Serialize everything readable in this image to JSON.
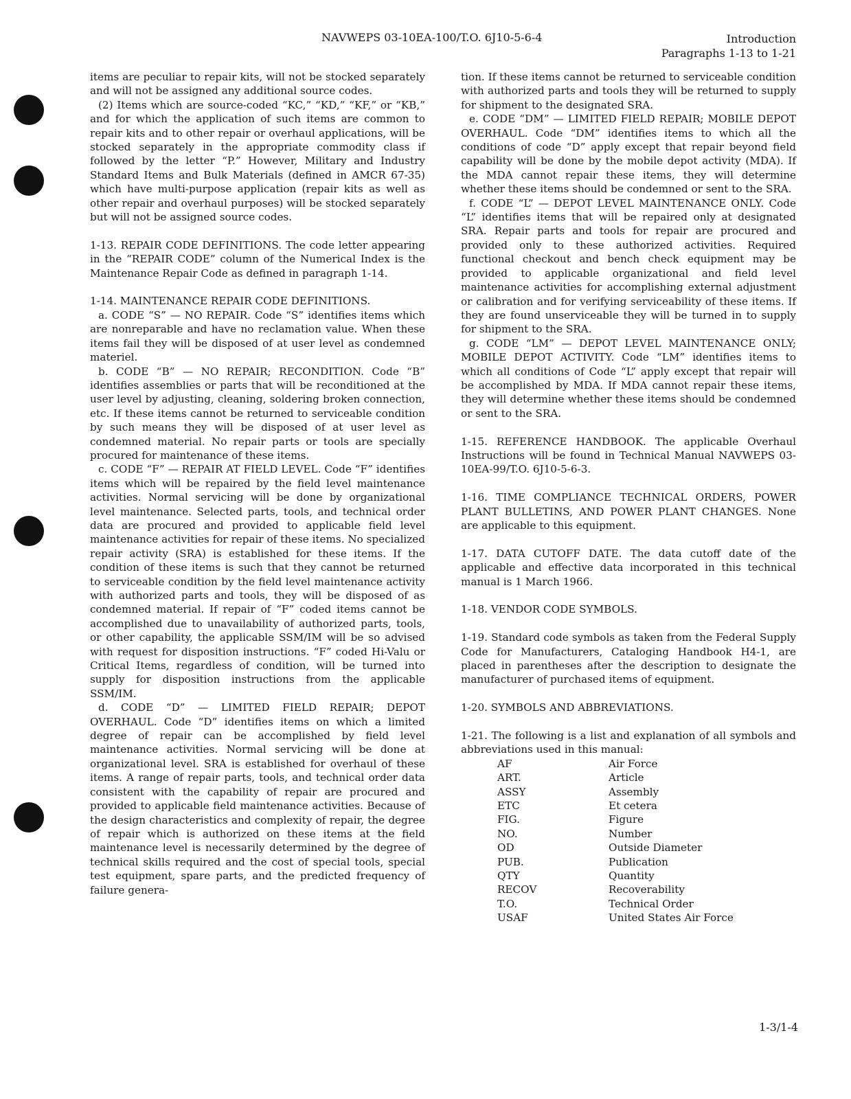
{
  "header": {
    "doc_id": "NAVWEPS 03-10EA-100/T.O. 6J10-5-6-4",
    "section": "Introduction",
    "paragraphs": "Paragraphs 1-13 to 1-21"
  },
  "left_column": [
    "items are peculiar to repair kits, will not be stocked separately and will not be assigned any additional source codes.",
    "(2) Items which are source-coded “KC,” “KD,” “KF,” or “KB,” and for which the application of such items are common to repair kits and to other repair or overhaul applications, will be stocked separately in the appropriate commodity class if followed by the letter “P.” However, Military and Industry Standard Items and Bulk Materials (defined in AMCR 67-35) which have multi-purpose application (repair kits as well as other repair and overhaul purposes) will be stocked separately but will not be assigned source codes.",
    "1-13. REPAIR CODE DEFINITIONS. The code letter appearing in the “REPAIR CODE” column of the Numerical Index is the Maintenance Repair Code as defined in paragraph 1-14.",
    "1-14. MAINTENANCE REPAIR CODE DEFINITIONS.",
    "a. CODE “S” — NO REPAIR. Code “S” identifies items which are nonreparable and have no reclamation value. When these items fail they will be disposed of at user level as condemned materiel.",
    "b. CODE “B” — NO REPAIR; RECONDITION. Code “B” identifies assemblies or parts that will be reconditioned at the user level by adjusting, cleaning, soldering broken connection, etc. If these items cannot be returned to serviceable condition by such means they will be disposed of at user level as condemned material. No repair parts or tools are specially procured for maintenance of these items.",
    "c. CODE “F” — REPAIR AT FIELD LEVEL. Code “F” identifies items which will be repaired by the field level maintenance activities. Normal servicing will be done by organizational level maintenance. Selected parts, tools, and technical order data are procured and provided to applicable field level maintenance activities for repair of these items. No specialized repair activity (SRA) is established for these items. If the condition of these items is such that they cannot be returned to serviceable condition by the field level maintenance activity with authorized parts and tools, they will be disposed of as condemned material. If repair of “F” coded items cannot be accomplished due to unavailability of authorized parts, tools, or other capability, the applicable SSM/IM will be so advised with request for disposition instructions. “F” coded Hi-Valu or Critical Items, regardless of condition, will be turned into supply for disposition instructions from the applicable SSM/IM.",
    "d. CODE “D” — LIMITED FIELD REPAIR; DEPOT OVERHAUL. Code “D” identifies items on which a limited degree of repair can be accomplished by field level maintenance activities. Normal servicing will be done at organizational level. SRA is established for overhaul of these items. A range of repair parts, tools, and technical order data consistent with the capability of repair are procured and provided to applicable field maintenance activities. Because of the design characteristics and complexity of repair, the degree of repair which is authorized on these items at the field maintenance level is necessarily determined by the degree of technical skills required and the cost of special tools, special test equipment, spare parts, and the predicted frequency of failure genera-"
  ],
  "right_column": [
    "tion. If these items cannot be returned to serviceable condition with authorized parts and tools they will be returned to supply for shipment to the designated SRA.",
    "e. CODE “DM” — LIMITED FIELD REPAIR; MOBILE DEPOT OVERHAUL. Code “DM” identifies items to which all the conditions of code “D” apply except that repair beyond field capability will be done by the mobile depot activity (MDA). If the MDA cannot repair these items, they will determine whether these items should be condemned or sent to the SRA.",
    "f. CODE “L” — DEPOT LEVEL MAINTENANCE ONLY. Code “L” identifies items that will be repaired only at designated SRA. Repair parts and tools for repair are procured and provided only to these authorized activities. Required functional checkout and bench check equipment may be provided to applicable organizational and field level maintenance activities for accomplishing external adjustment or calibration and for verifying serviceability of these items. If they are found unserviceable they will be turned in to supply for shipment to the SRA.",
    "g. CODE “LM” — DEPOT LEVEL MAINTENANCE ONLY; MOBILE DEPOT ACTIVITY. Code “LM” identifies items to which all conditions of Code “L” apply except that repair will be accomplished by MDA. If MDA cannot repair these items, they will determine whether these items should be condemned or sent to the SRA.",
    "1-15. REFERENCE HANDBOOK. The applicable Overhaul Instructions will be found in Technical Manual NAVWEPS 03-10EA-99/T.O. 6J10-5-6-3.",
    "1-16. TIME COMPLIANCE TECHNICAL ORDERS, POWER PLANT BULLETINS, AND POWER PLANT CHANGES. None are applicable to this equipment.",
    "1-17. DATA CUTOFF DATE. The data cutoff date of the applicable and effective data incorporated in this technical manual is 1 March 1966.",
    "1-18. VENDOR CODE SYMBOLS.",
    "1-19. Standard code symbols as taken from the Federal Supply Code for Manufacturers, Cataloging Handbook H4-1, are placed in parentheses after the description to designate the manufacturer of purchased items of equipment.",
    "1-20. SYMBOLS AND ABBREVIATIONS.",
    "1-21. The following is a list and explanation of all symbols and abbreviations used in this manual:"
  ],
  "abbreviations": [
    [
      "AF",
      "Air Force"
    ],
    [
      "ART.",
      "Article"
    ],
    [
      "ASSY",
      "Assembly"
    ],
    [
      "ETC",
      "Et cetera"
    ],
    [
      "FIG.",
      "Figure"
    ],
    [
      "NO.",
      "Number"
    ],
    [
      "OD",
      "Outside Diameter"
    ],
    [
      "PUB.",
      "Publication"
    ],
    [
      "QTY",
      "Quantity"
    ],
    [
      "RECOV",
      "Recoverability"
    ],
    [
      "T.O.",
      "Technical Order"
    ],
    [
      "USAF",
      "United States Air Force"
    ]
  ],
  "footer": {
    "page_number": "1-3/1-4"
  }
}
